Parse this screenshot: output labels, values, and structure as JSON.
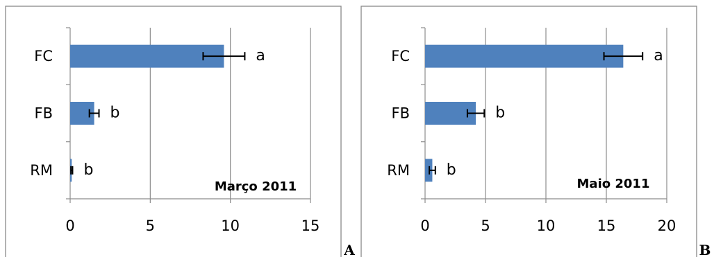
{
  "chart_data": [
    {
      "type": "bar",
      "orientation": "horizontal",
      "title": "Março 2011",
      "panel_label": "A",
      "categories": [
        "FC",
        "FB",
        "RM"
      ],
      "values": [
        9.6,
        1.5,
        0.1
      ],
      "error": [
        1.3,
        0.3,
        0.05
      ],
      "annotations": [
        "a",
        "b",
        "b"
      ],
      "xlim": [
        0,
        15
      ],
      "xticks": [
        "0",
        "5",
        "10",
        "15"
      ],
      "grid": true,
      "bar_color": "#4f81bd"
    },
    {
      "type": "bar",
      "orientation": "horizontal",
      "title": "Maio 2011",
      "panel_label": "B",
      "categories": [
        "FC",
        "FB",
        "RM"
      ],
      "values": [
        16.4,
        4.2,
        0.6
      ],
      "error": [
        1.6,
        0.7,
        0.25
      ],
      "annotations": [
        "a",
        "b",
        "b"
      ],
      "xlim": [
        0,
        20
      ],
      "xticks": [
        "0",
        "5",
        "10",
        "15",
        "20"
      ],
      "grid": true,
      "bar_color": "#4f81bd"
    }
  ]
}
